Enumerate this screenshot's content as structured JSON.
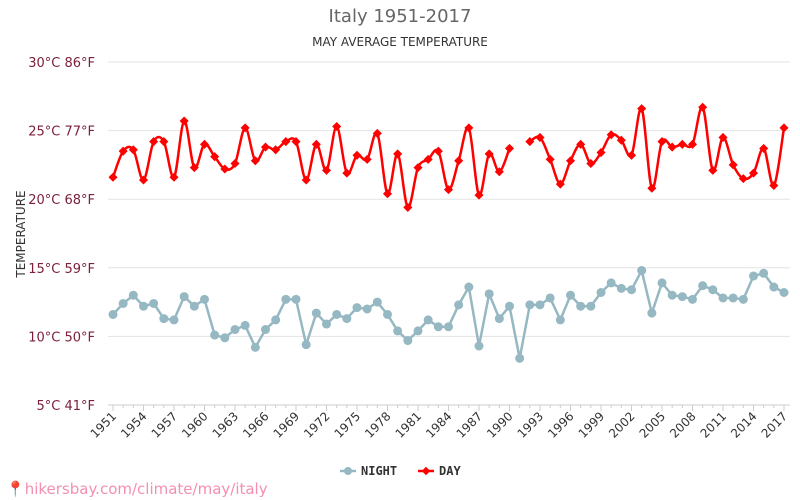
{
  "chart_data": {
    "type": "line",
    "title": "Italy 1951-2017",
    "subtitle": "MAY AVERAGE TEMPERATURE",
    "ylabel": "TEMPERATURE",
    "ylim": [
      5,
      30
    ],
    "yticks": [
      {
        "v": 5,
        "label": "5°C 41°F"
      },
      {
        "v": 10,
        "label": "10°C 50°F"
      },
      {
        "v": 15,
        "label": "15°C 59°F"
      },
      {
        "v": 20,
        "label": "20°C 68°F"
      },
      {
        "v": 25,
        "label": "25°C 77°F"
      },
      {
        "v": 30,
        "label": "30°C 86°F"
      }
    ],
    "xticks": [
      "1951",
      "1954",
      "1957",
      "1960",
      "1963",
      "1966",
      "1969",
      "1972",
      "1975",
      "1978",
      "1981",
      "1984",
      "1987",
      "1990",
      "1993",
      "1996",
      "1999",
      "2002",
      "2005",
      "2008",
      "2011",
      "2014",
      "2017"
    ],
    "x_start": 1951,
    "grid": true,
    "legend": "bottom",
    "series": [
      {
        "name": "NIGHT",
        "color": "#96b8c2",
        "values": [
          11.6,
          12.4,
          13.0,
          12.2,
          12.4,
          11.3,
          11.2,
          12.9,
          12.2,
          12.7,
          10.1,
          9.9,
          10.5,
          10.8,
          9.2,
          10.5,
          11.2,
          12.7,
          12.7,
          9.4,
          11.7,
          10.9,
          11.6,
          11.3,
          12.1,
          12.0,
          12.5,
          11.6,
          10.4,
          9.7,
          10.4,
          11.2,
          10.7,
          10.7,
          12.3,
          13.6,
          9.3,
          13.1,
          11.3,
          12.2,
          8.4,
          12.3,
          12.3,
          12.8,
          11.2,
          13.0,
          12.2,
          12.2,
          13.2,
          13.9,
          13.5,
          13.4,
          14.8,
          11.7,
          13.9,
          13.0,
          12.9,
          12.7,
          13.7,
          13.4,
          12.8,
          12.8,
          12.7,
          14.4,
          14.6,
          13.6,
          13.2
        ]
      },
      {
        "name": "DAY",
        "color": "#ff0000",
        "values": [
          21.6,
          23.5,
          23.6,
          21.4,
          24.2,
          24.2,
          21.6,
          25.7,
          22.3,
          24.0,
          23.1,
          22.2,
          22.6,
          25.2,
          22.8,
          23.8,
          23.6,
          24.2,
          24.2,
          21.4,
          24.0,
          22.1,
          25.3,
          21.9,
          23.2,
          22.9,
          24.8,
          20.4,
          23.3,
          19.4,
          22.3,
          22.9,
          23.5,
          20.7,
          22.8,
          25.2,
          20.3,
          23.3,
          22.0,
          23.7,
          null,
          24.2,
          24.5,
          22.9,
          21.1,
          22.8,
          24.0,
          22.6,
          23.4,
          24.7,
          24.3,
          23.2,
          26.6,
          20.8,
          24.2,
          23.8,
          24.0,
          24.0,
          26.7,
          22.1,
          24.5,
          22.5,
          21.5,
          21.9,
          23.7,
          21.0,
          25.2
        ]
      }
    ]
  },
  "footer": "hikersbay.com/climate/may/italy"
}
